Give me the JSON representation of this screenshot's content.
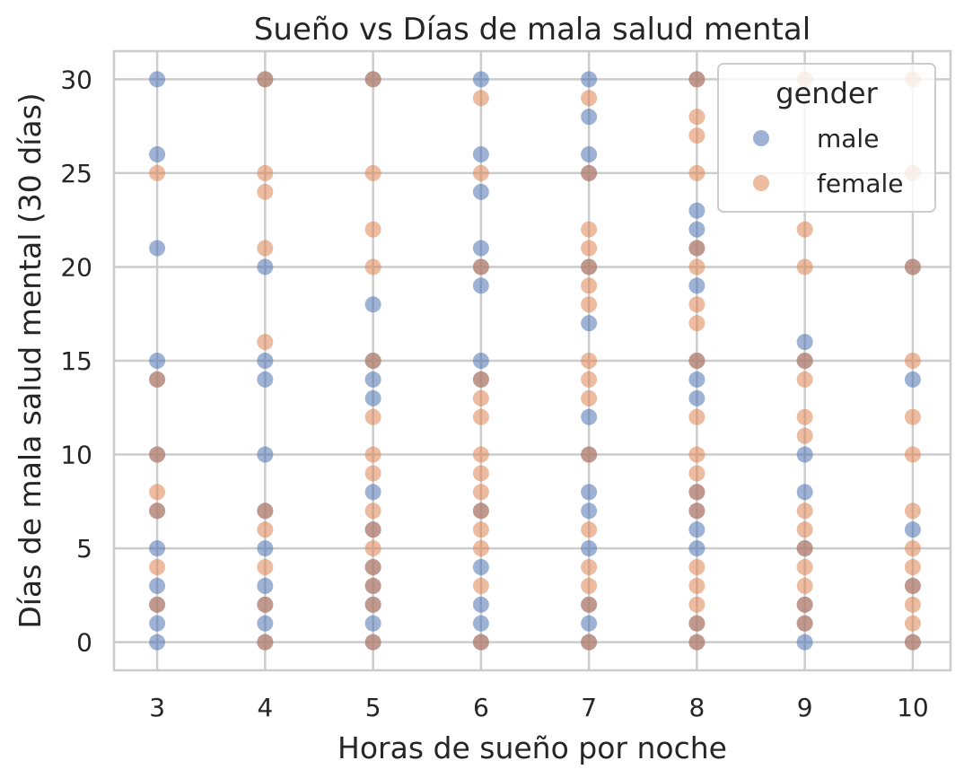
{
  "chart_data": {
    "type": "scatter",
    "title": "Sueño vs Días de mala salud mental",
    "xlabel": "Horas de sueño por noche",
    "ylabel": "Días de mala salud mental (30 días)",
    "xlim": [
      2.6,
      10.35
    ],
    "ylim": [
      -1.5,
      31.5
    ],
    "x_ticks": [
      "3",
      "4",
      "5",
      "6",
      "7",
      "8",
      "9",
      "10"
    ],
    "y_ticks": [
      "0",
      "5",
      "10",
      "15",
      "20",
      "25",
      "30"
    ],
    "grid": true,
    "legend": {
      "title": "gender",
      "placement": "top-right"
    },
    "series": [
      {
        "name": "male",
        "color": "#4c72b0",
        "points": [
          [
            3,
            0
          ],
          [
            3,
            1
          ],
          [
            3,
            3
          ],
          [
            3,
            5
          ],
          [
            3,
            15
          ],
          [
            3,
            21
          ],
          [
            3,
            26
          ],
          [
            3,
            30
          ],
          [
            3,
            7
          ],
          [
            3,
            10
          ],
          [
            3,
            14
          ],
          [
            3,
            2
          ],
          [
            4,
            0
          ],
          [
            4,
            1
          ],
          [
            4,
            3
          ],
          [
            4,
            5
          ],
          [
            4,
            10
          ],
          [
            4,
            14
          ],
          [
            4,
            15
          ],
          [
            4,
            20
          ],
          [
            4,
            30
          ],
          [
            4,
            7
          ],
          [
            4,
            2
          ],
          [
            5,
            0
          ],
          [
            5,
            1
          ],
          [
            5,
            2
          ],
          [
            5,
            3
          ],
          [
            5,
            8
          ],
          [
            5,
            13
          ],
          [
            5,
            14
          ],
          [
            5,
            15
          ],
          [
            5,
            18
          ],
          [
            5,
            30
          ],
          [
            5,
            4
          ],
          [
            5,
            6
          ],
          [
            6,
            0
          ],
          [
            6,
            1
          ],
          [
            6,
            2
          ],
          [
            6,
            4
          ],
          [
            6,
            7
          ],
          [
            6,
            14
          ],
          [
            6,
            15
          ],
          [
            6,
            19
          ],
          [
            6,
            20
          ],
          [
            6,
            21
          ],
          [
            6,
            24
          ],
          [
            6,
            26
          ],
          [
            6,
            30
          ],
          [
            7,
            0
          ],
          [
            7,
            1
          ],
          [
            7,
            2
          ],
          [
            7,
            5
          ],
          [
            7,
            7
          ],
          [
            7,
            8
          ],
          [
            7,
            10
          ],
          [
            7,
            12
          ],
          [
            7,
            17
          ],
          [
            7,
            20
          ],
          [
            7,
            25
          ],
          [
            7,
            26
          ],
          [
            7,
            28
          ],
          [
            7,
            30
          ],
          [
            8,
            0
          ],
          [
            8,
            1
          ],
          [
            8,
            5
          ],
          [
            8,
            6
          ],
          [
            8,
            7
          ],
          [
            8,
            8
          ],
          [
            8,
            13
          ],
          [
            8,
            14
          ],
          [
            8,
            19
          ],
          [
            8,
            21
          ],
          [
            8,
            22
          ],
          [
            8,
            23
          ],
          [
            8,
            30
          ],
          [
            8,
            15
          ],
          [
            9,
            0
          ],
          [
            9,
            1
          ],
          [
            9,
            2
          ],
          [
            9,
            5
          ],
          [
            9,
            8
          ],
          [
            9,
            10
          ],
          [
            9,
            15
          ],
          [
            9,
            16
          ],
          [
            10,
            0
          ],
          [
            10,
            6
          ],
          [
            10,
            14
          ],
          [
            10,
            3
          ],
          [
            10,
            20
          ]
        ]
      },
      {
        "name": "female",
        "color": "#dd8452",
        "points": [
          [
            3,
            2
          ],
          [
            3,
            4
          ],
          [
            3,
            7
          ],
          [
            3,
            8
          ],
          [
            3,
            10
          ],
          [
            3,
            14
          ],
          [
            3,
            25
          ],
          [
            4,
            0
          ],
          [
            4,
            2
          ],
          [
            4,
            4
          ],
          [
            4,
            6
          ],
          [
            4,
            7
          ],
          [
            4,
            16
          ],
          [
            4,
            21
          ],
          [
            4,
            24
          ],
          [
            4,
            25
          ],
          [
            4,
            30
          ],
          [
            5,
            0
          ],
          [
            5,
            2
          ],
          [
            5,
            3
          ],
          [
            5,
            4
          ],
          [
            5,
            5
          ],
          [
            5,
            6
          ],
          [
            5,
            7
          ],
          [
            5,
            9
          ],
          [
            5,
            10
          ],
          [
            5,
            12
          ],
          [
            5,
            15
          ],
          [
            5,
            20
          ],
          [
            5,
            22
          ],
          [
            5,
            25
          ],
          [
            5,
            30
          ],
          [
            6,
            0
          ],
          [
            6,
            3
          ],
          [
            6,
            5
          ],
          [
            6,
            6
          ],
          [
            6,
            7
          ],
          [
            6,
            8
          ],
          [
            6,
            9
          ],
          [
            6,
            10
          ],
          [
            6,
            12
          ],
          [
            6,
            13
          ],
          [
            6,
            14
          ],
          [
            6,
            20
          ],
          [
            6,
            25
          ],
          [
            6,
            29
          ],
          [
            7,
            0
          ],
          [
            7,
            2
          ],
          [
            7,
            3
          ],
          [
            7,
            4
          ],
          [
            7,
            6
          ],
          [
            7,
            10
          ],
          [
            7,
            13
          ],
          [
            7,
            14
          ],
          [
            7,
            15
          ],
          [
            7,
            18
          ],
          [
            7,
            19
          ],
          [
            7,
            20
          ],
          [
            7,
            21
          ],
          [
            7,
            22
          ],
          [
            7,
            25
          ],
          [
            7,
            29
          ],
          [
            8,
            0
          ],
          [
            8,
            1
          ],
          [
            8,
            2
          ],
          [
            8,
            3
          ],
          [
            8,
            4
          ],
          [
            8,
            7
          ],
          [
            8,
            8
          ],
          [
            8,
            9
          ],
          [
            8,
            10
          ],
          [
            8,
            12
          ],
          [
            8,
            15
          ],
          [
            8,
            17
          ],
          [
            8,
            18
          ],
          [
            8,
            20
          ],
          [
            8,
            21
          ],
          [
            8,
            25
          ],
          [
            8,
            27
          ],
          [
            8,
            28
          ],
          [
            8,
            30
          ],
          [
            9,
            1
          ],
          [
            9,
            2
          ],
          [
            9,
            3
          ],
          [
            9,
            4
          ],
          [
            9,
            5
          ],
          [
            9,
            6
          ],
          [
            9,
            7
          ],
          [
            9,
            11
          ],
          [
            9,
            12
          ],
          [
            9,
            14
          ],
          [
            9,
            15
          ],
          [
            9,
            20
          ],
          [
            9,
            22
          ],
          [
            9,
            30
          ],
          [
            10,
            0
          ],
          [
            10,
            1
          ],
          [
            10,
            2
          ],
          [
            10,
            3
          ],
          [
            10,
            4
          ],
          [
            10,
            5
          ],
          [
            10,
            7
          ],
          [
            10,
            10
          ],
          [
            10,
            12
          ],
          [
            10,
            15
          ],
          [
            10,
            20
          ],
          [
            10,
            25
          ],
          [
            10,
            30
          ]
        ]
      }
    ]
  }
}
